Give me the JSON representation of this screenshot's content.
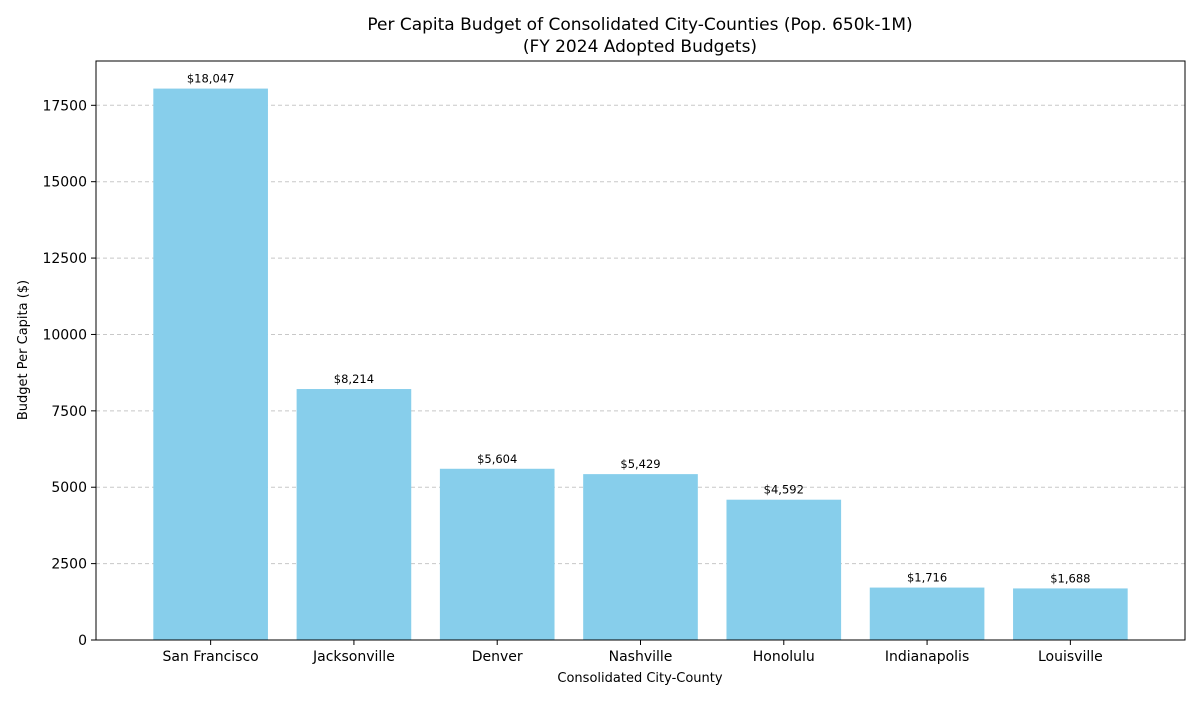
{
  "chart_data": {
    "type": "bar",
    "title_lines": [
      "Per Capita Budget of Consolidated City-Counties (Pop. 650k-1M)",
      "(FY 2024 Adopted Budgets)"
    ],
    "xlabel": "Consolidated City-County",
    "ylabel": "Budget Per Capita ($)",
    "categories": [
      "San Francisco",
      "Jacksonville",
      "Denver",
      "Nashville",
      "Honolulu",
      "Indianapolis",
      "Louisville"
    ],
    "values": [
      18047,
      8214,
      5604,
      5429,
      4592,
      1716,
      1688
    ],
    "value_labels": [
      "$18,047",
      "$8,214",
      "$5,604",
      "$5,429",
      "$4,592",
      "$1,716",
      "$1,688"
    ],
    "yticks": [
      0,
      2500,
      5000,
      7500,
      10000,
      12500,
      15000,
      17500
    ],
    "ylim": [
      0,
      18950
    ],
    "grid": "y-dashed",
    "bar_color": "#87CEEB",
    "grid_color": "#c8c8c8",
    "axis_color": "#000000"
  }
}
